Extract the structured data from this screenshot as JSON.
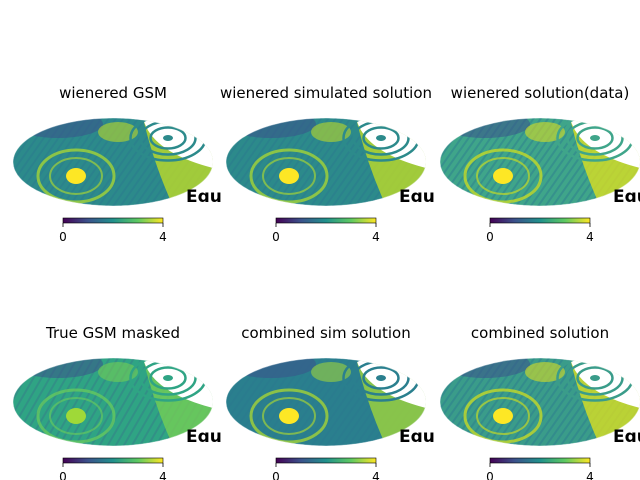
{
  "chart_data": [
    {
      "type": "heatmap",
      "projection": "mollweide",
      "title": "wienered GSM",
      "coord_label": "Equ",
      "colorbar": {
        "min": 0,
        "max": 4,
        "ticks": [
          "0",
          "4"
        ],
        "colormap": "viridis"
      },
      "masked_region": "right side (white concentric arcs)"
    },
    {
      "type": "heatmap",
      "projection": "mollweide",
      "title": "wienered simulated solution",
      "coord_label": "Equ",
      "colorbar": {
        "min": 0,
        "max": 4,
        "ticks": [
          "0",
          "4"
        ],
        "colormap": "viridis"
      },
      "masked_region": "right side (white concentric arcs)"
    },
    {
      "type": "heatmap",
      "projection": "mollweide",
      "title": "wienered solution(data)",
      "coord_label": "Equ",
      "colorbar": {
        "min": 0,
        "max": 4,
        "ticks": [
          "0",
          "4"
        ],
        "colormap": "viridis"
      },
      "masked_region": "right side (white concentric arcs)"
    },
    {
      "type": "heatmap",
      "projection": "mollweide",
      "title": "True GSM masked",
      "coord_label": "Equ",
      "colorbar": {
        "min": 0,
        "max": 4,
        "ticks": [
          "0",
          "4"
        ],
        "colormap": "viridis"
      },
      "masked_region": "right side (white concentric arcs)"
    },
    {
      "type": "heatmap",
      "projection": "mollweide",
      "title": "combined sim solution",
      "coord_label": "Equ",
      "colorbar": {
        "min": 0,
        "max": 4,
        "ticks": [
          "0",
          "4"
        ],
        "colormap": "viridis"
      },
      "masked_region": "right side (white concentric arcs)"
    },
    {
      "type": "heatmap",
      "projection": "mollweide",
      "title": "combined solution",
      "coord_label": "Equ",
      "colorbar": {
        "min": 0,
        "max": 4,
        "ticks": [
          "0",
          "4"
        ],
        "colormap": "viridis"
      },
      "masked_region": "right side (white concentric arcs)"
    }
  ],
  "colors": {
    "viridis_dark": "#440154",
    "viridis_mid": "#21918c",
    "viridis_light": "#fde725",
    "mask": "#ffffff"
  }
}
